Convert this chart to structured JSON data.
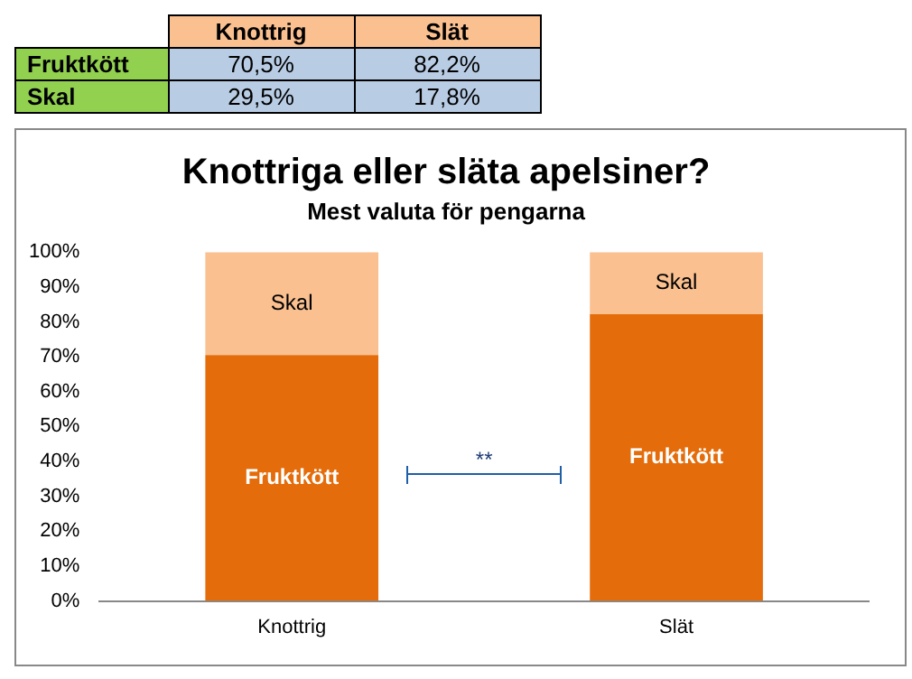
{
  "chart_data": {
    "type": "bar",
    "stacked": true,
    "title": "Knottriga eller släta apelsiner?",
    "subtitle": "Mest valuta för pengarna",
    "categories": [
      "Knottrig",
      "Slät"
    ],
    "series": [
      {
        "name": "Fruktkött",
        "color": "#e46c0a",
        "values": [
          70.5,
          82.2
        ]
      },
      {
        "name": "Skal",
        "color": "#fac090",
        "values": [
          29.5,
          17.8
        ]
      }
    ],
    "ylim": [
      0,
      100
    ],
    "yticks": [
      {
        "value": 0,
        "label": "0%"
      },
      {
        "value": 10,
        "label": "10%"
      },
      {
        "value": 20,
        "label": "20%"
      },
      {
        "value": 30,
        "label": "30%"
      },
      {
        "value": 40,
        "label": "40%"
      },
      {
        "value": 50,
        "label": "50%"
      },
      {
        "value": 60,
        "label": "60%"
      },
      {
        "value": 70,
        "label": "70%"
      },
      {
        "value": 80,
        "label": "80%"
      },
      {
        "value": 90,
        "label": "90%"
      },
      {
        "value": 100,
        "label": "100%"
      }
    ],
    "grid": false,
    "legend": false,
    "annotations": [
      "**",
      "70,5%",
      "82,2%",
      "29,5%",
      "17,8%"
    ]
  }
}
